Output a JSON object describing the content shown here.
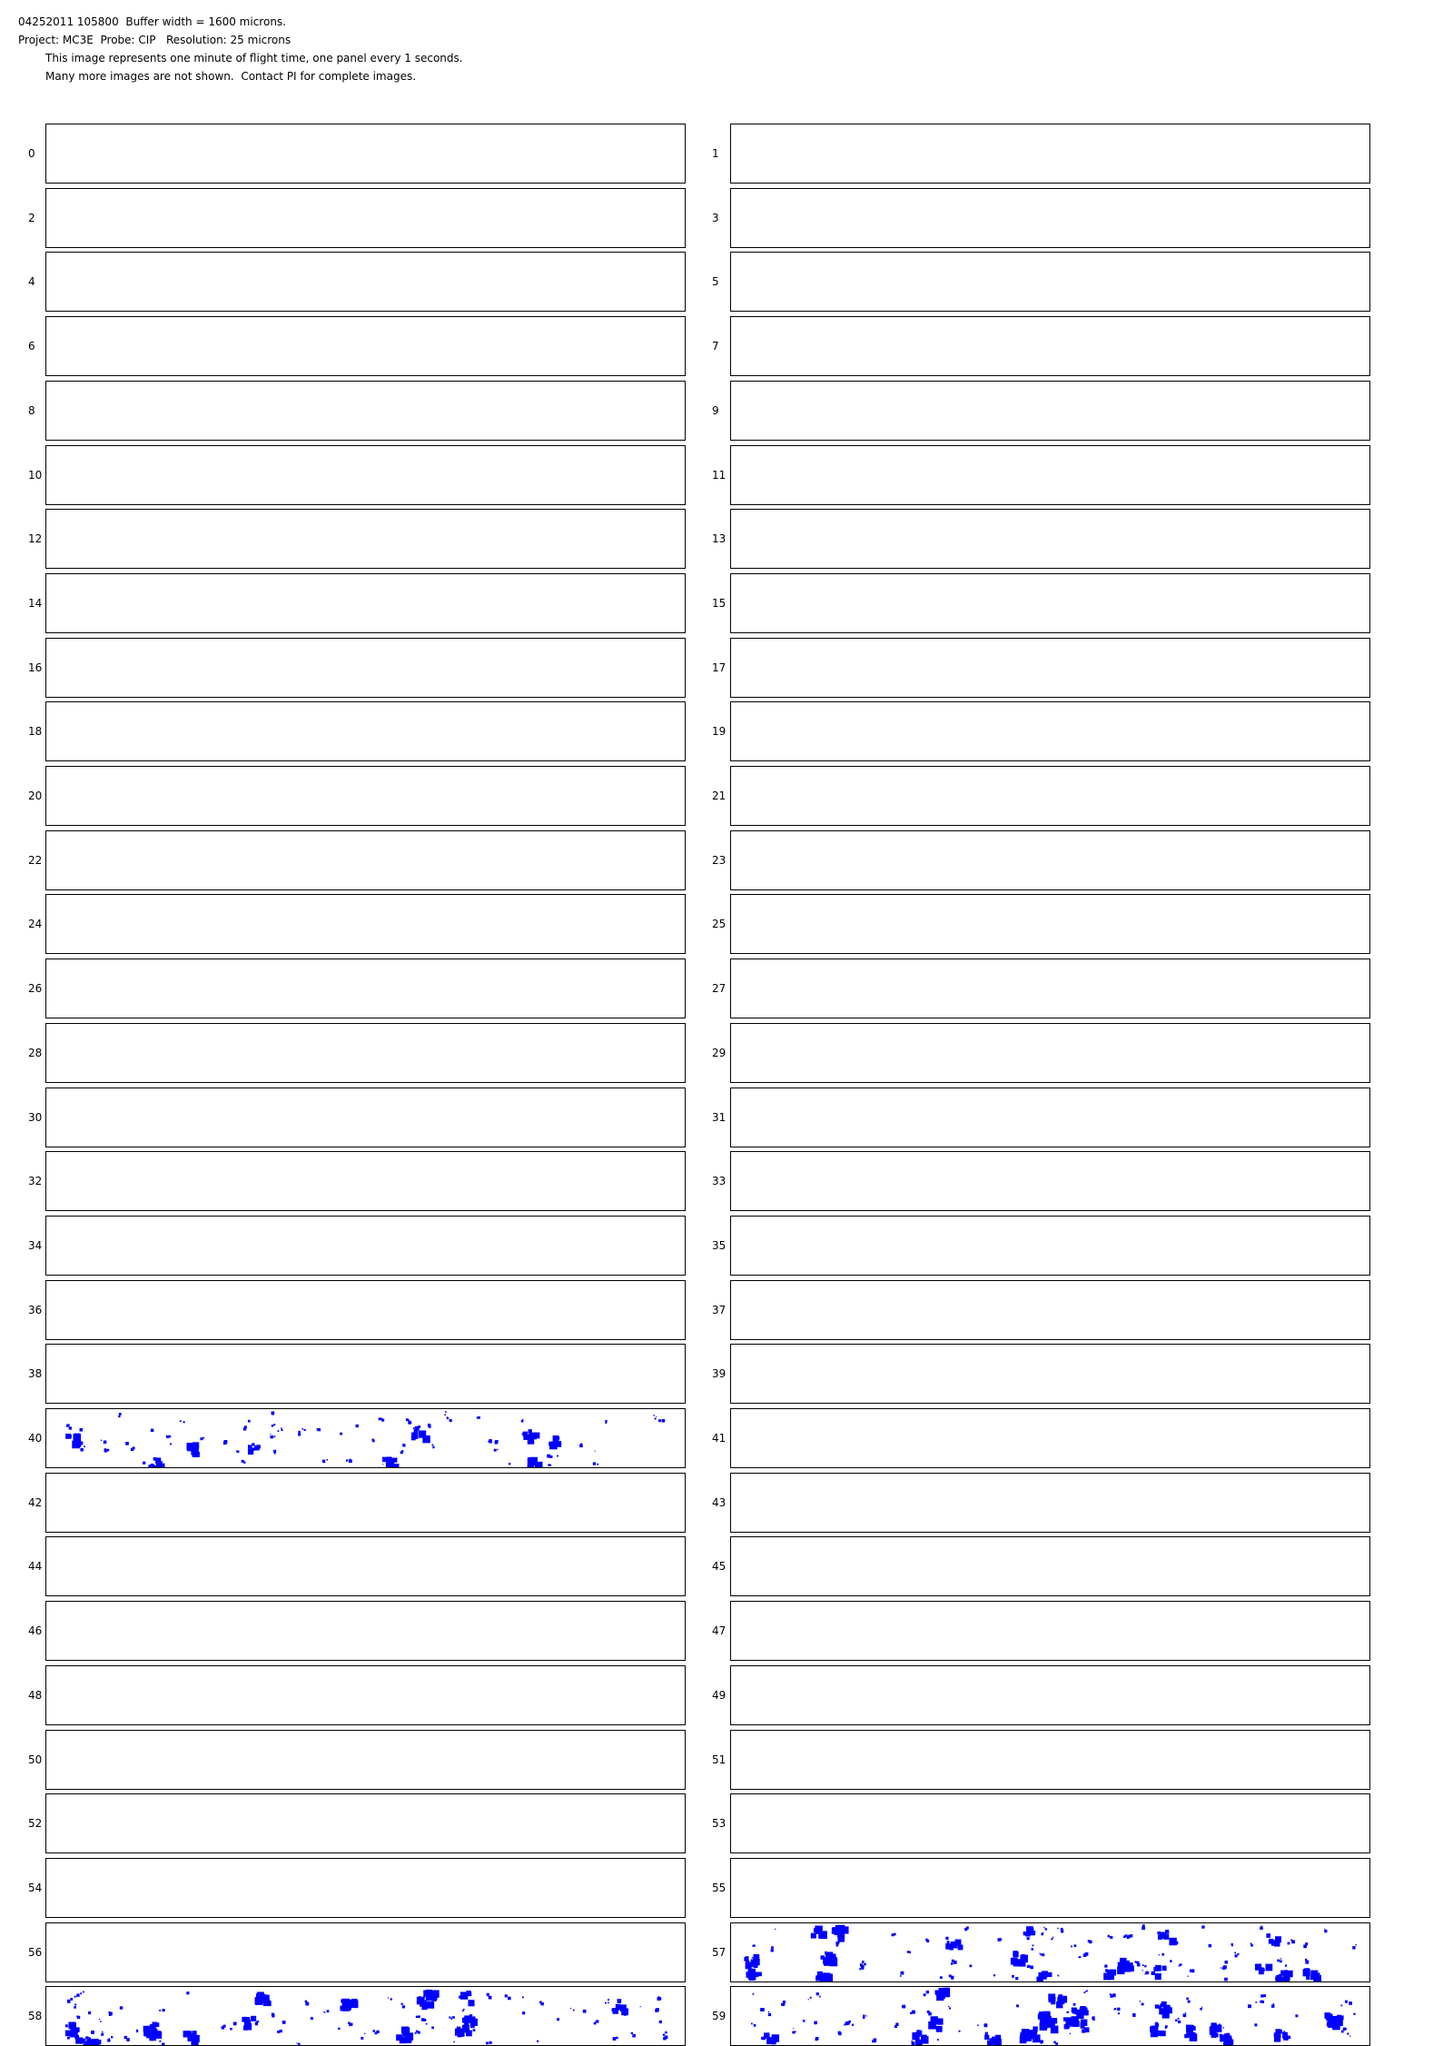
{
  "header": {
    "line1": "04252011 105800  Buffer width = 1600 microns.",
    "line2": "Project: MC3E  Probe: CIP   Resolution: 25 microns",
    "line3": "This image represents one minute of flight time, one panel every 1 seconds.",
    "line4": "Many more images are not shown.  Contact PI for complete images."
  },
  "particle_color": "#0000ff",
  "panels": {
    "p0": "0",
    "p1": "1",
    "p2": "2",
    "p3": "3",
    "p4": "4",
    "p5": "5",
    "p6": "6",
    "p7": "7",
    "p8": "8",
    "p9": "9",
    "p10": "10",
    "p11": "11",
    "p12": "12",
    "p13": "13",
    "p14": "14",
    "p15": "15",
    "p16": "16",
    "p17": "17",
    "p18": "18",
    "p19": "19",
    "p20": "20",
    "p21": "21",
    "p22": "22",
    "p23": "23",
    "p24": "24",
    "p25": "25",
    "p26": "26",
    "p27": "27",
    "p28": "28",
    "p29": "29",
    "p30": "30",
    "p31": "31",
    "p32": "32",
    "p33": "33",
    "p34": "34",
    "p35": "35",
    "p36": "36",
    "p37": "37",
    "p38": "38",
    "p39": "39",
    "p40": "40",
    "p41": "41",
    "p42": "42",
    "p43": "43",
    "p44": "44",
    "p45": "45",
    "p46": "46",
    "p47": "47",
    "p48": "48",
    "p49": "49",
    "p50": "50",
    "p51": "51",
    "p52": "52",
    "p53": "53",
    "p54": "54",
    "p55": "55",
    "p56": "56",
    "p57": "57",
    "p58": "58",
    "p59": "59"
  },
  "panels_with_particles": [
    40,
    57,
    58,
    59
  ]
}
